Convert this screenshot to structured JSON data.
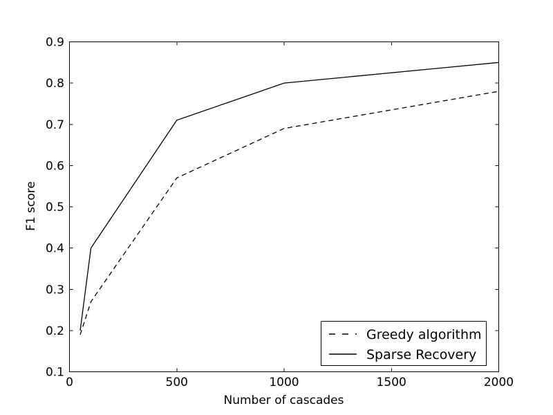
{
  "figure": {
    "background_color": "#ffffff",
    "axes_color": "#000000",
    "line_color": "#000000"
  },
  "chart_data": {
    "type": "line",
    "title": "",
    "xlabel": "Number of cascades",
    "ylabel": "F1 score",
    "xlim": [
      0,
      2000
    ],
    "ylim": [
      0.1,
      0.9
    ],
    "grid": false,
    "legend_position": "lower right",
    "x_ticks": [
      0,
      500,
      1000,
      1500,
      2000
    ],
    "x_tick_labels": [
      "0",
      "500",
      "1000",
      "1500",
      "2000"
    ],
    "y_ticks": [
      0.1,
      0.2,
      0.3,
      0.4,
      0.5,
      0.6,
      0.7,
      0.8,
      0.9
    ],
    "y_tick_labels": [
      "0.1",
      "0.2",
      "0.3",
      "0.4",
      "0.5",
      "0.6",
      "0.7",
      "0.8",
      "0.9"
    ],
    "x": [
      50,
      100,
      500,
      1000,
      2000
    ],
    "series": [
      {
        "name": "Greedy algorithm",
        "style": "dashed",
        "color": "#000000",
        "values": [
          0.19,
          0.27,
          0.57,
          0.69,
          0.78
        ]
      },
      {
        "name": "Sparse Recovery",
        "style": "solid",
        "color": "#000000",
        "values": [
          0.2,
          0.4,
          0.71,
          0.8,
          0.85
        ]
      }
    ]
  }
}
